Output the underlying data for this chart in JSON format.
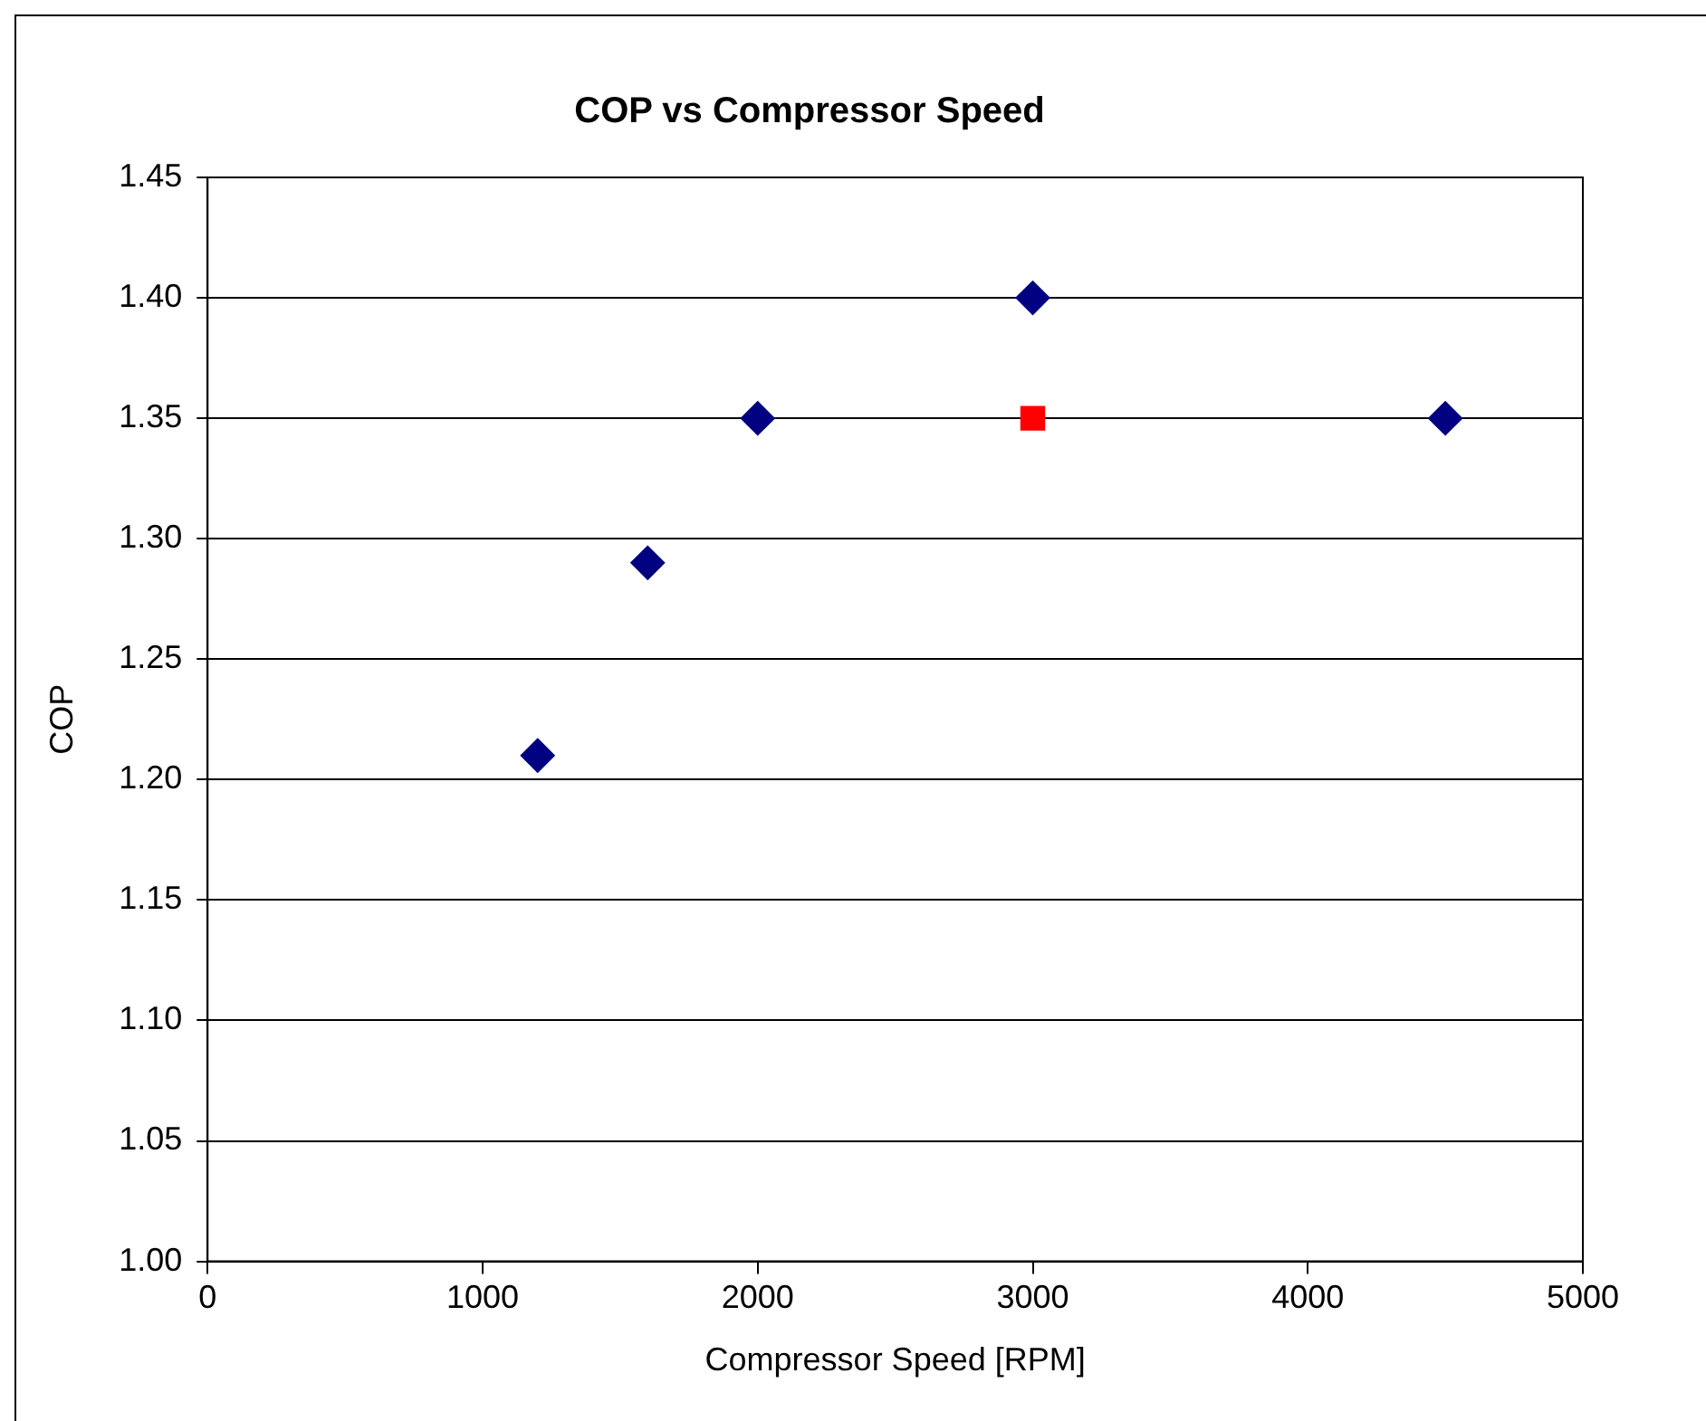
{
  "chart_data": {
    "type": "scatter",
    "title": "COP vs Compressor Speed",
    "xlabel": "Compressor Speed [RPM]",
    "ylabel": "COP",
    "series": [
      {
        "color": "#000080",
        "marker": "diamond",
        "x": [
          1200,
          1600,
          2000,
          3000,
          4500
        ],
        "values": [
          1.21,
          1.29,
          1.35,
          1.4,
          1.35
        ]
      },
      {
        "color": "#ff0000",
        "marker": "square",
        "x": [
          3000
        ],
        "values": [
          1.35
        ]
      }
    ],
    "xlim": [
      0,
      5000
    ],
    "xticks": [
      0,
      1000,
      2000,
      3000,
      4000,
      5000
    ],
    "ylim": [
      1.0,
      1.45
    ],
    "yticks": [
      {
        "value": 1,
        "label": "1.00"
      },
      1.05,
      {
        "value": 1.1,
        "label": "1.10"
      },
      1.15,
      {
        "value": 1.2,
        "label": "1.20"
      },
      1.25,
      {
        "value": 1.3,
        "label": "1.30"
      },
      1.35,
      {
        "value": 1.4,
        "label": "1.40"
      },
      1.45
    ],
    "grid": "y"
  }
}
